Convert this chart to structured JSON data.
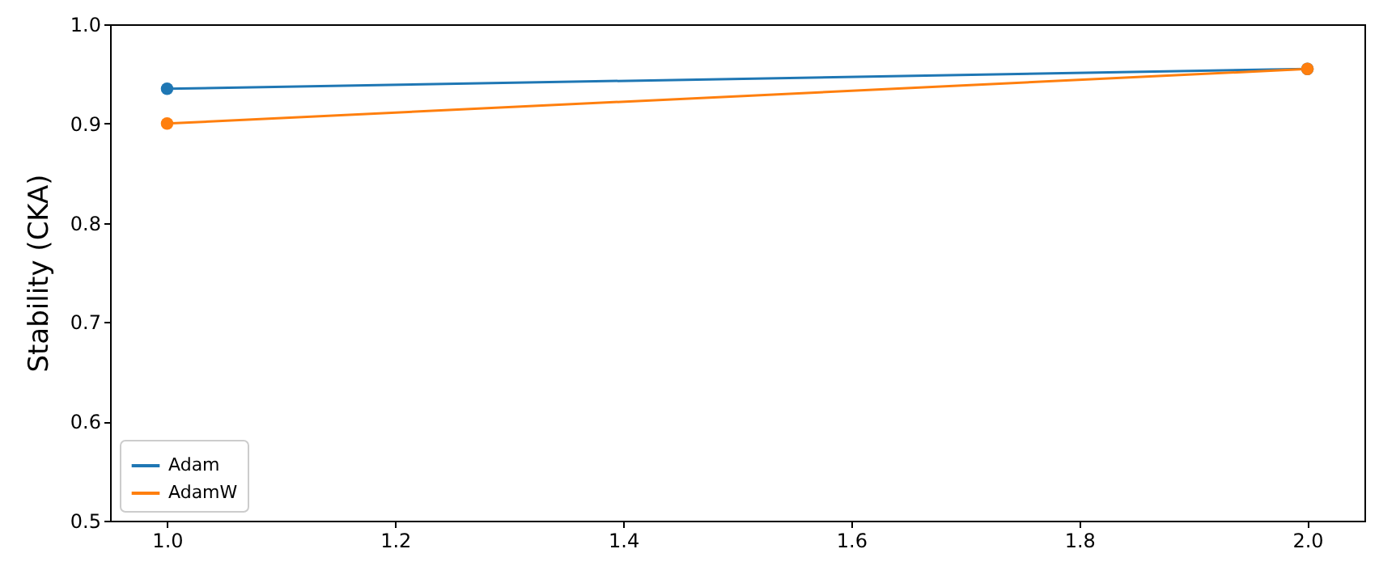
{
  "chart_data": {
    "type": "line",
    "ylabel": "Stability (CKA)",
    "x": [
      1.0,
      2.0
    ],
    "series": [
      {
        "name": "Adam",
        "color": "#1f77b4",
        "values": [
          0.935,
          0.955
        ]
      },
      {
        "name": "AdamW",
        "color": "#ff7f0e",
        "values": [
          0.9,
          0.955
        ]
      }
    ],
    "xlim": [
      0.95,
      2.05
    ],
    "xticks": [
      {
        "value": 1.0,
        "label": "1.0"
      },
      {
        "value": 1.2,
        "label": "1.2"
      },
      {
        "value": 1.4,
        "label": "1.4"
      },
      {
        "value": 1.6,
        "label": "1.6"
      },
      {
        "value": 1.8,
        "label": "1.8"
      },
      {
        "value": 2.0,
        "label": "2.0"
      }
    ],
    "ylim": [
      0.5,
      1.0
    ],
    "yticks": [
      {
        "value": 0.5,
        "label": "0.5"
      },
      {
        "value": 0.6,
        "label": "0.6"
      },
      {
        "value": 0.7,
        "label": "0.7"
      },
      {
        "value": 0.8,
        "label": "0.8"
      },
      {
        "value": 0.9,
        "label": "0.9"
      },
      {
        "value": 1.0,
        "label": "1.0"
      }
    ],
    "grid": false,
    "legend": "bottom left",
    "marker": "circle",
    "line_style": "solid"
  }
}
